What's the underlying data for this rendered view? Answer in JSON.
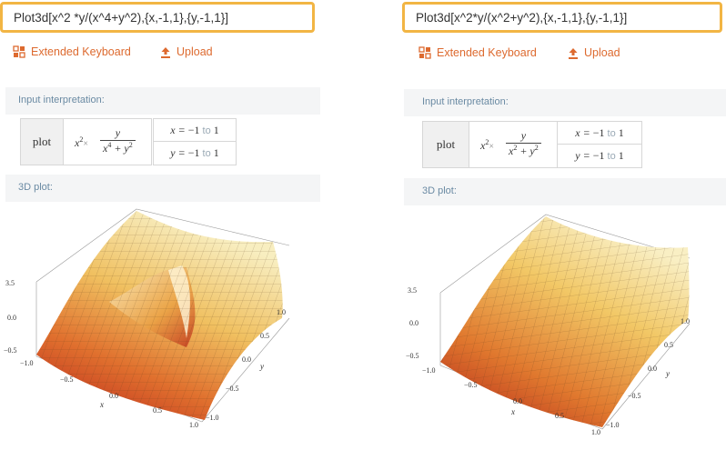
{
  "panels": [
    {
      "query": "Plot3d[x^2 *y/(x^4+y^2),{x,-1,1},{y,-1,1}]",
      "extended_keyboard": "Extended Keyboard",
      "upload": "Upload",
      "input_interpretation": "Input interpretation:",
      "plot_word": "plot",
      "expr_prefix": "x",
      "expr_prefix_sup": "2",
      "expr_times": "×",
      "expr_num": "y",
      "expr_den_a": "x",
      "expr_den_a_sup": "4",
      "expr_den_b": " + y",
      "expr_den_b_sup": "2",
      "x_range": {
        "var": "x = ",
        "lo": "−1",
        "to": "to",
        "hi": "1"
      },
      "y_range": {
        "var": "y = ",
        "lo": "−1",
        "to": "to",
        "hi": "1"
      },
      "plot_title": "3D plot:",
      "z_ticks": [
        "3.5",
        "0.0",
        "−0.5"
      ],
      "x_ticks": [
        "−1.0",
        "−0.5",
        "0.0",
        "0.5",
        "1.0"
      ],
      "y_ticks": [
        "1.0",
        "0.5",
        "0.0",
        "−0.5",
        "−1.0"
      ],
      "x_axis_label": "x",
      "y_axis_label": "y"
    },
    {
      "query": "Plot3d[x^2*y/(x^2+y^2),{x,-1,1},{y,-1,1}]",
      "extended_keyboard": "Extended Keyboard",
      "upload": "Upload",
      "input_interpretation": "Input interpretation:",
      "plot_word": "plot",
      "expr_prefix": "x",
      "expr_prefix_sup": "2",
      "expr_times": "×",
      "expr_num": "y",
      "expr_den_a": "x",
      "expr_den_a_sup": "2",
      "expr_den_b": " + y",
      "expr_den_b_sup": "2",
      "x_range": {
        "var": "x = ",
        "lo": "−1",
        "to": "to",
        "hi": "1"
      },
      "y_range": {
        "var": "y = ",
        "lo": "−1",
        "to": "to",
        "hi": "1"
      },
      "plot_title": "3D plot:",
      "z_ticks": [
        "3.5",
        "0.0",
        "−0.5"
      ],
      "x_ticks": [
        "−1.0",
        "−0.5",
        "0.0",
        "0.5",
        "1.0"
      ],
      "y_ticks": [
        "1.0",
        "0.5",
        "0.0",
        "−0.5",
        "−1.0"
      ],
      "x_axis_label": "x",
      "y_axis_label": "y"
    }
  ],
  "colors": {
    "query_border": "#f2b544",
    "tool_orange": "#dd6a2f",
    "section_bg": "#f4f5f6",
    "section_title": "#6a8aa3"
  },
  "icons": {
    "keyboard": "extended-keyboard-icon",
    "upload": "upload-icon"
  }
}
